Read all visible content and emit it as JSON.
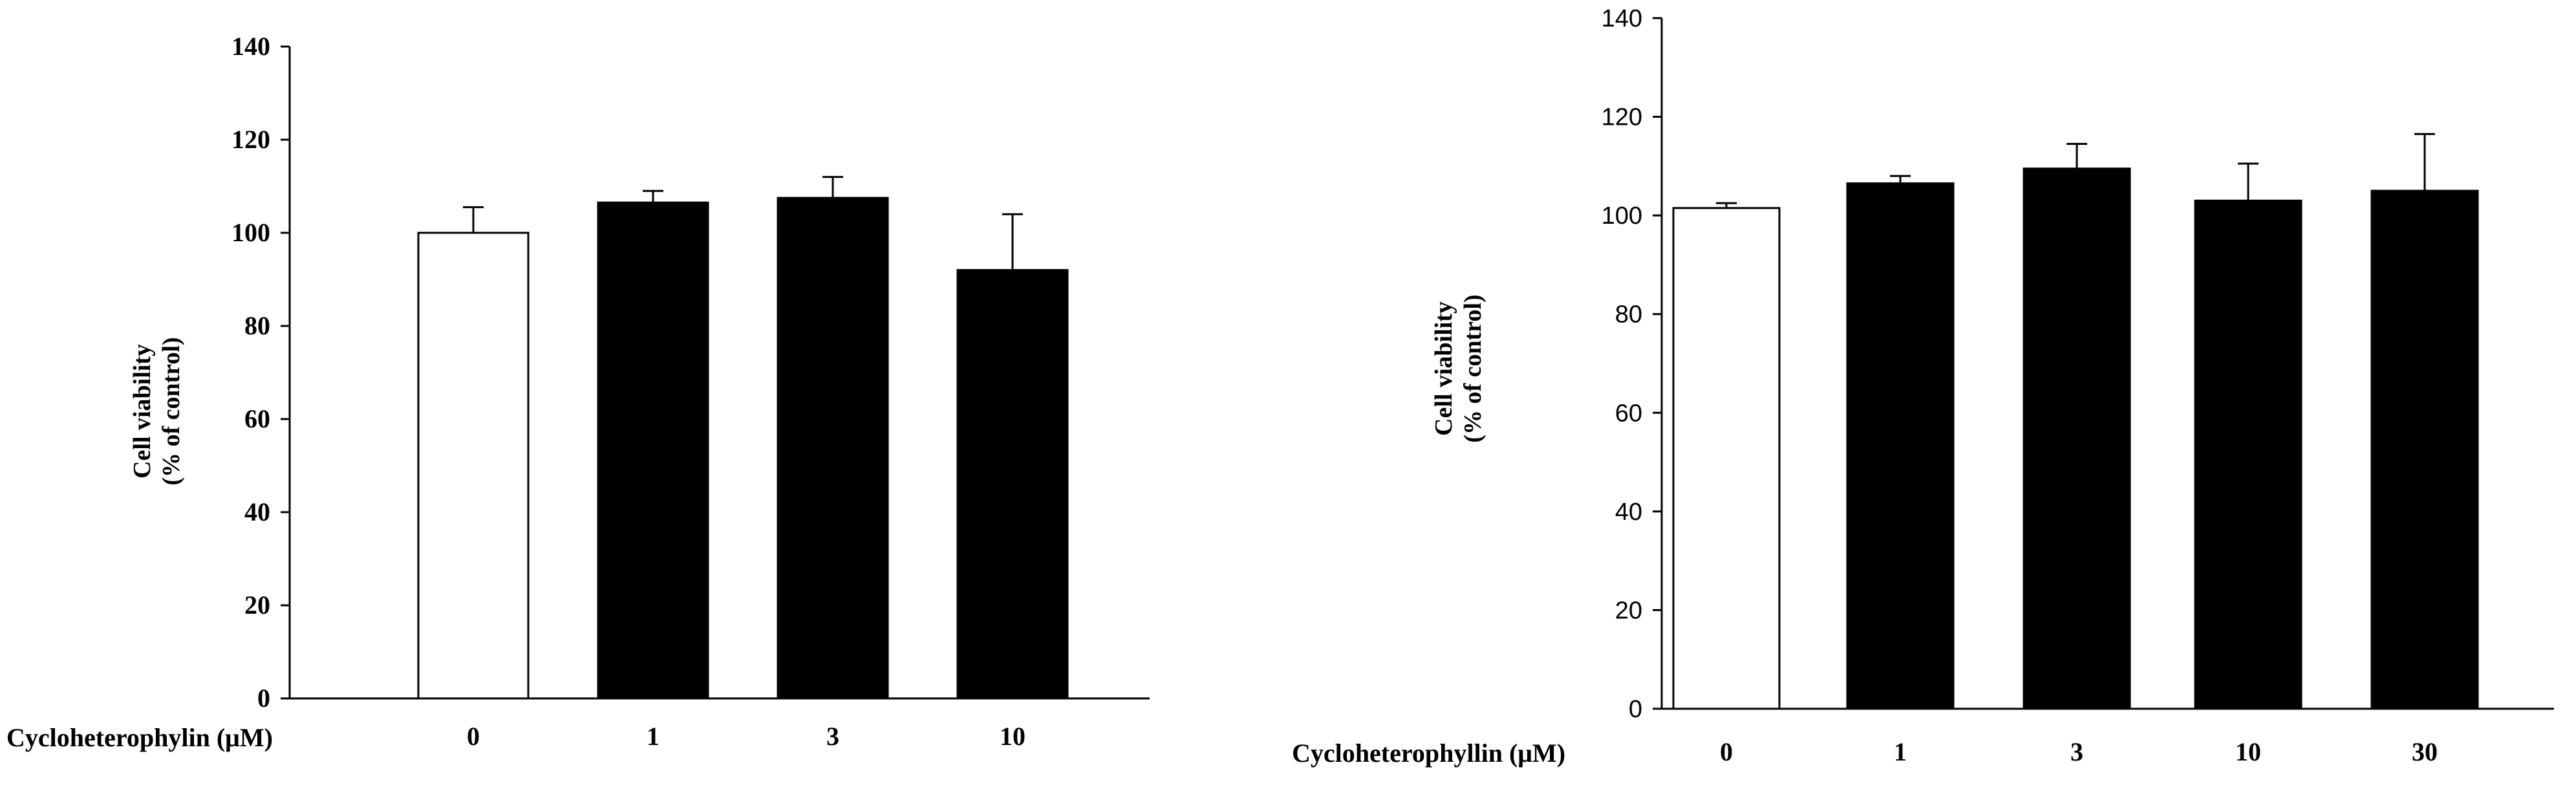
{
  "colors": {
    "axis": "#000000",
    "bar_control": "#ffffff",
    "bar_treated": "#000000",
    "background": "#ffffff"
  },
  "chart_data": [
    {
      "type": "bar",
      "xlabel": "Cycloheterophylin (μM)",
      "ylabel": [
        "Cell viability",
        "(% of control)"
      ],
      "categories": [
        "0",
        "1",
        "3",
        "10"
      ],
      "values": [
        100,
        106.5,
        107.5,
        92
      ],
      "errors": [
        5.5,
        2.5,
        4.5,
        12
      ],
      "fills": [
        "#ffffff",
        "#000000",
        "#000000",
        "#000000"
      ],
      "ylim": [
        0,
        140
      ],
      "yticks": [
        "0",
        "20",
        "40",
        "60",
        "80",
        "100",
        "120",
        "140"
      ],
      "grid": false
    },
    {
      "type": "bar",
      "xlabel": "Cycloheterophyllin (μM)",
      "ylabel": [
        "Cell viability",
        "(% of control)"
      ],
      "categories": [
        "0",
        "1",
        "3",
        "10",
        "30"
      ],
      "values": [
        101.5,
        106.5,
        109.5,
        103,
        105
      ],
      "errors": [
        1,
        1.5,
        5,
        7.5,
        11.5
      ],
      "fills": [
        "#ffffff",
        "#000000",
        "#000000",
        "#000000",
        "#000000"
      ],
      "ylim": [
        0,
        140
      ],
      "yticks": [
        "0",
        "20",
        "40",
        "60",
        "80",
        "100",
        "120",
        "140"
      ],
      "grid": false
    }
  ]
}
